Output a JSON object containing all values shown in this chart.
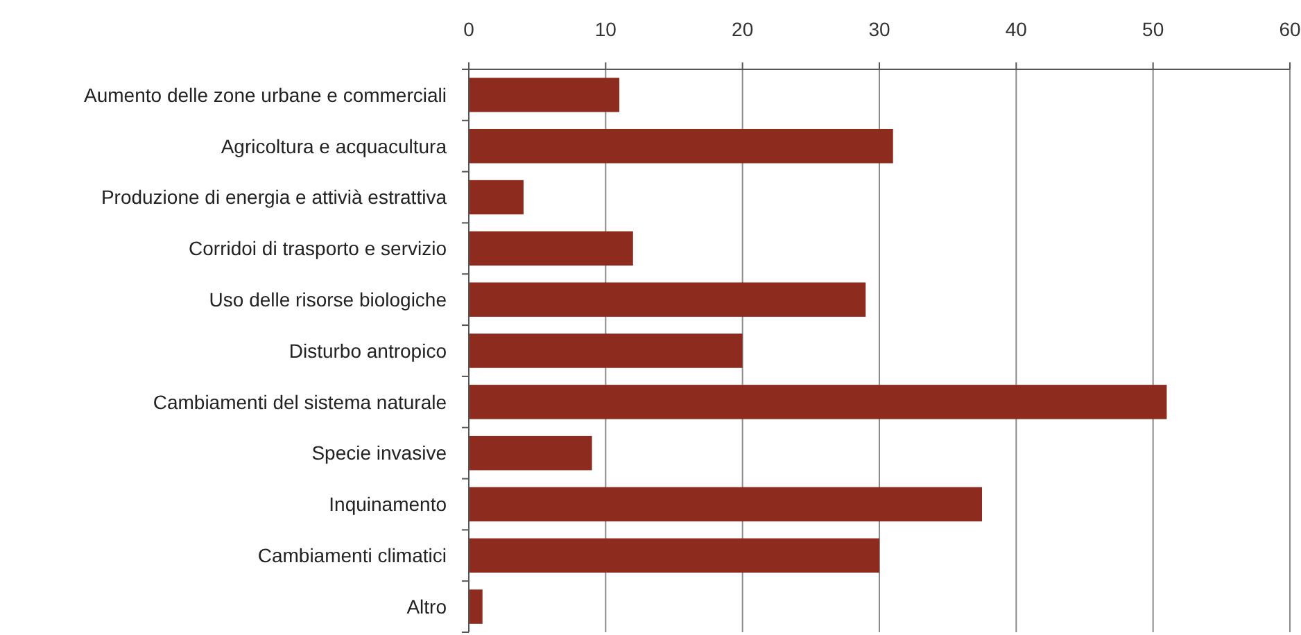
{
  "chart_data": {
    "type": "bar",
    "orientation": "horizontal",
    "categories": [
      "Aumento delle zone urbane e commerciali",
      "Agricoltura e acquacultura",
      "Produzione di energia e attivià estrattiva",
      "Corridoi di trasporto e servizio",
      "Uso delle risorse biologiche",
      "Disturbo antropico",
      "Cambiamenti del sistema naturale",
      "Specie invasive",
      "Inquinamento",
      "Cambiamenti climatici",
      "Altro"
    ],
    "values": [
      11,
      31,
      4,
      12,
      29,
      20,
      51,
      9,
      37.5,
      30,
      1
    ],
    "color": "#8e2b1f",
    "xlim": [
      0,
      60
    ],
    "xticks": [
      0,
      10,
      20,
      30,
      40,
      50,
      60
    ],
    "grid": "x"
  }
}
